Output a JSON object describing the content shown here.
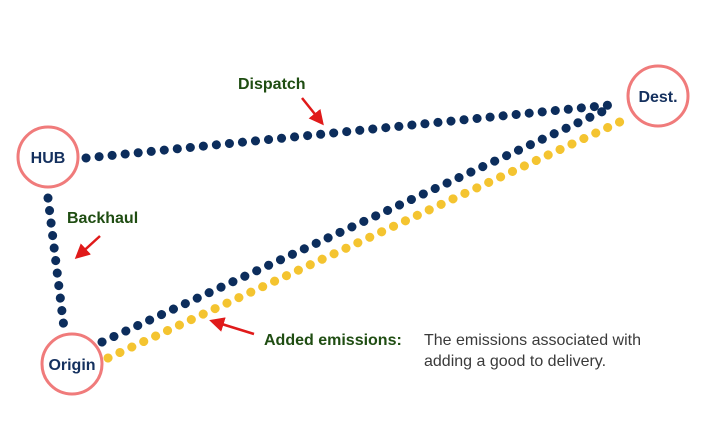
{
  "nodes": {
    "hub": {
      "label": "HUB"
    },
    "origin": {
      "label": "Origin"
    },
    "dest": {
      "label": "Dest."
    }
  },
  "labels": {
    "dispatch": "Dispatch",
    "backhaul": "Backhaul",
    "added_emissions": "Added emissions:",
    "emissions_description_line1": "The emissions associated with",
    "emissions_description_line2": "adding a good to delivery."
  },
  "colors": {
    "route_navy": "#0c2d5c",
    "route_yellow": "#f4c430",
    "node_ring": "#f07b7b",
    "arrow_red": "#e01a1a",
    "label_green": "#1f4d12",
    "node_text": "#14305e"
  }
}
